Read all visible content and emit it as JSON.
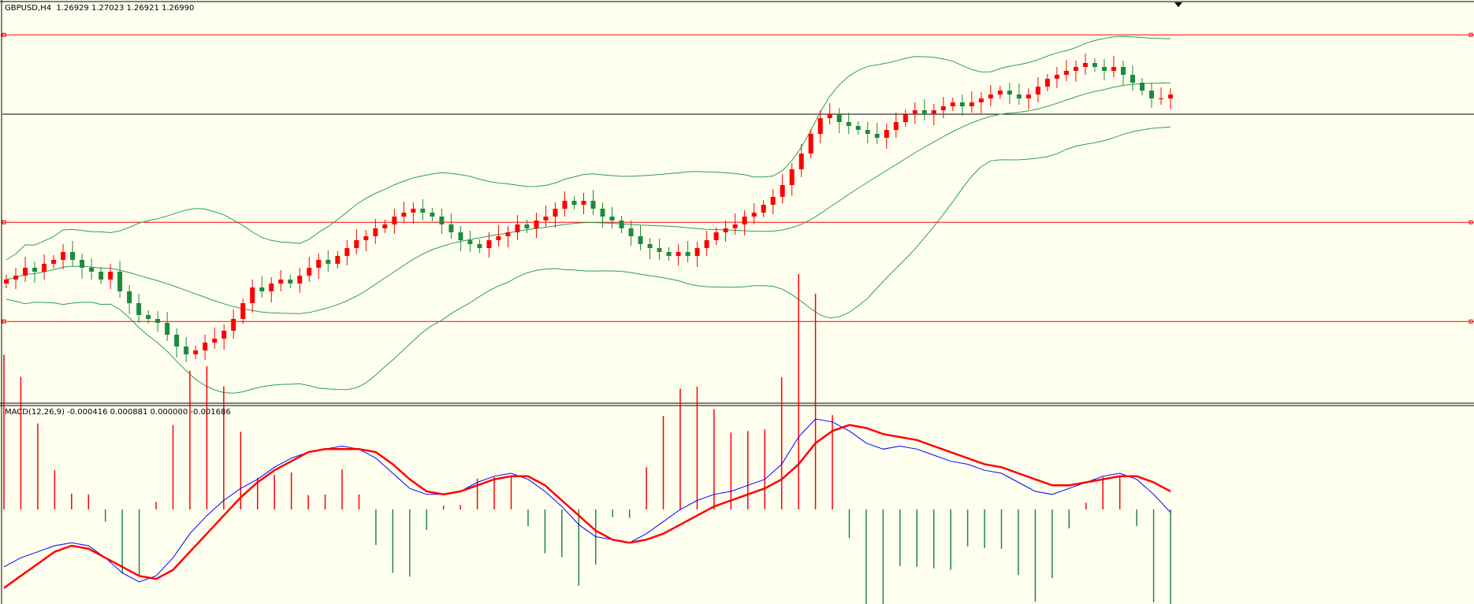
{
  "price_panel": {
    "title": "GBPUSD,H4  1.26929 1.27023 1.26921 1.26990"
  },
  "macd_panel": {
    "title": "MACD(12,26,9) -0.000416 0.000881 0.000000 -0.001686"
  },
  "colors": {
    "background": "#fffff0",
    "bull_candle": "#ff0000",
    "bear_candle": "#1e8a3c",
    "bollinger": "#2e9e55",
    "level_line": "#ff0000",
    "current_price_line": "#000000",
    "macd_line": "#0000ff",
    "signal_line": "#ff0000",
    "hist_positive": "#ff0000",
    "hist_negative": "#1e8a3c"
  },
  "chart_data": [
    {
      "type": "candlestick",
      "symbol": "GBPUSD",
      "timeframe": "H4",
      "last_bar": {
        "open": 1.26929,
        "high": 1.27023,
        "low": 1.26921,
        "close": 1.2699
      },
      "ohlc_closes": [
        0.5,
        0.51,
        0.53,
        0.52,
        0.54,
        0.55,
        0.57,
        0.55,
        0.53,
        0.52,
        0.5,
        0.52,
        0.47,
        0.44,
        0.41,
        0.4,
        0.39,
        0.36,
        0.33,
        0.31,
        0.32,
        0.34,
        0.35,
        0.37,
        0.4,
        0.44,
        0.48,
        0.47,
        0.49,
        0.5,
        0.49,
        0.51,
        0.53,
        0.55,
        0.54,
        0.56,
        0.58,
        0.6,
        0.61,
        0.63,
        0.64,
        0.66,
        0.67,
        0.68,
        0.67,
        0.66,
        0.64,
        0.62,
        0.6,
        0.59,
        0.58,
        0.6,
        0.61,
        0.62,
        0.64,
        0.63,
        0.65,
        0.66,
        0.68,
        0.7,
        0.69,
        0.7,
        0.68,
        0.66,
        0.65,
        0.63,
        0.61,
        0.59,
        0.58,
        0.57,
        0.56,
        0.57,
        0.56,
        0.58,
        0.6,
        0.62,
        0.63,
        0.64,
        0.66,
        0.67,
        0.69,
        0.71,
        0.74,
        0.78,
        0.82,
        0.87,
        0.91,
        0.92,
        0.9,
        0.89,
        0.88,
        0.87,
        0.86,
        0.88,
        0.9,
        0.92,
        0.93,
        0.92,
        0.93,
        0.94,
        0.95,
        0.94,
        0.95,
        0.96,
        0.97,
        0.98,
        0.97,
        0.96,
        0.97,
        0.99,
        1.01,
        1.02,
        1.03,
        1.04,
        1.05,
        1.04,
        1.03,
        1.04,
        1.02,
        1.0,
        0.98,
        0.96,
        0.96,
        0.97
      ],
      "levels": [
        1.277,
        1.2735,
        1.265,
        1.2605
      ],
      "current_price": 1.2699,
      "indicator": "Bollinger Bands"
    },
    {
      "type": "macd",
      "params": [
        12,
        26,
        9
      ],
      "values": {
        "macd": -0.000416,
        "signal": 0.000881,
        "hist_zero": 0.0,
        "min": -0.001686
      },
      "macd_series": [
        -0.0019,
        -0.0016,
        -0.0014,
        -0.0012,
        -0.0011,
        -0.0012,
        -0.0016,
        -0.0021,
        -0.0024,
        -0.0022,
        -0.0016,
        -0.0008,
        -0.0002,
        0.0003,
        0.0007,
        0.001,
        0.0014,
        0.0017,
        0.0019,
        0.002,
        0.0021,
        0.002,
        0.0017,
        0.0012,
        0.0007,
        0.0005,
        0.0005,
        0.0006,
        0.0009,
        0.0011,
        0.0012,
        0.001,
        0.0006,
        0.0001,
        -0.0005,
        -0.0009,
        -0.001,
        -0.0011,
        -0.0008,
        -0.0004,
        0.0,
        0.0003,
        0.0005,
        0.0006,
        0.0008,
        0.001,
        0.0015,
        0.0024,
        0.003,
        0.0029,
        0.0026,
        0.0022,
        0.002,
        0.0021,
        0.002,
        0.0018,
        0.0016,
        0.0015,
        0.0013,
        0.0012,
        0.0009,
        0.0006,
        0.0005,
        0.0007,
        0.0009,
        0.0011,
        0.0012,
        0.001,
        0.0005,
        -0.0001
      ],
      "signal_series": [
        -0.0026,
        -0.0022,
        -0.0018,
        -0.0014,
        -0.0012,
        -0.0013,
        -0.0016,
        -0.0019,
        -0.0022,
        -0.0023,
        -0.002,
        -0.0014,
        -0.0008,
        -0.0002,
        0.0004,
        0.0009,
        0.0013,
        0.0016,
        0.0019,
        0.002,
        0.002,
        0.002,
        0.0019,
        0.0015,
        0.001,
        0.0006,
        0.0005,
        0.0006,
        0.0008,
        0.001,
        0.0011,
        0.0011,
        0.0008,
        0.0003,
        -0.0002,
        -0.0007,
        -0.001,
        -0.0011,
        -0.001,
        -0.0008,
        -0.0005,
        -0.0002,
        0.0001,
        0.0003,
        0.0005,
        0.0007,
        0.001,
        0.0015,
        0.0022,
        0.0026,
        0.0028,
        0.0027,
        0.0025,
        0.0024,
        0.0023,
        0.0021,
        0.0019,
        0.0017,
        0.0015,
        0.0014,
        0.0012,
        0.001,
        0.0008,
        0.0008,
        0.0009,
        0.001,
        0.0011,
        0.0011,
        0.0009,
        0.0006
      ]
    }
  ]
}
